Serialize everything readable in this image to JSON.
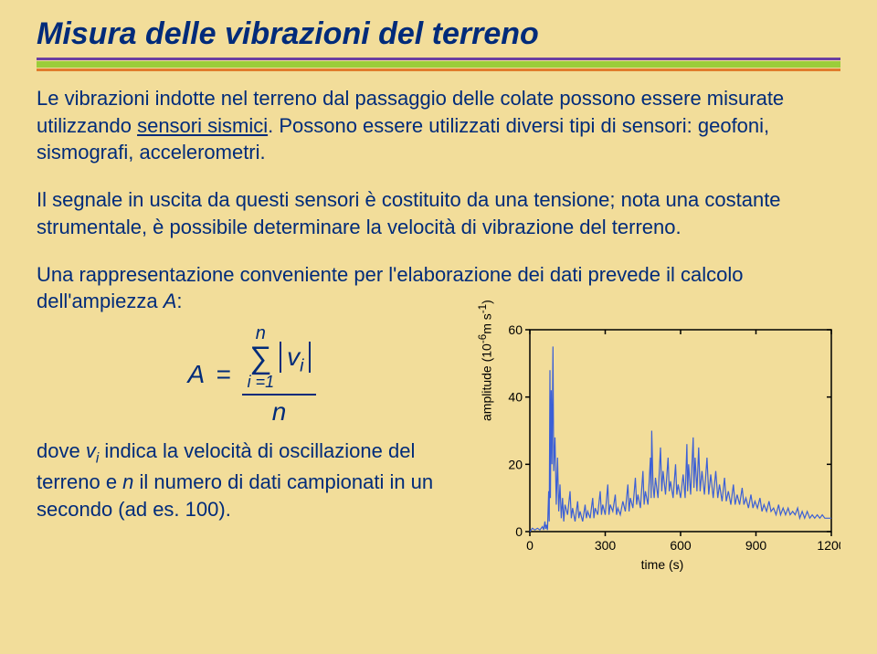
{
  "title": "Misura delle vibrazioni del terreno",
  "p1_a": "Le vibrazioni indotte nel terreno dal passaggio delle colate possono essere misurate utilizzando ",
  "p1_u": "sensori sismici",
  "p1_b": ". Possono essere utilizzati diversi tipi di sensori: geofoni, sismografi, accelerometri.",
  "p2": "Il segnale in uscita da questi sensori è costituito da una tensione; nota una costante strumentale, è possibile determinare la velocità di vibrazione del terreno.",
  "p3": "Una rappresentazione conveniente per l'elaborazione dei dati prevede il calcolo dell'ampiezza ",
  "p3_A": "A",
  "p3_colon": ":",
  "formula": {
    "A": "A",
    "eq": "=",
    "n_top": "n",
    "sigma": "∑",
    "i1": "i =1",
    "v": "v",
    "i": "i",
    "n_bot": "n"
  },
  "caption_a": "dove ",
  "caption_v": "v",
  "caption_i": "i",
  "caption_b": " indica la velocità di oscillazione del terreno e ",
  "caption_n": "n",
  "caption_c": " il numero di dati campionati in un secondo (ad es. 100).",
  "chart": {
    "ylabel_a": "amplitude (10",
    "ylabel_sup": "-6",
    "ylabel_b": "m s",
    "ylabel_sup2": "-1",
    "ylabel_c": ")",
    "xlabel": "time (s)",
    "yticks": [
      "0",
      "20",
      "40",
      "60"
    ],
    "xticks": [
      "0",
      "300",
      "600",
      "900",
      "1200"
    ],
    "xlim": [
      0,
      1200
    ],
    "ylim": [
      0,
      60
    ],
    "line_color": "#3b5fd6",
    "axis_color": "#000000",
    "background": "#f2dd9a",
    "data": [
      [
        0,
        0
      ],
      [
        10,
        1
      ],
      [
        20,
        0.5
      ],
      [
        30,
        1
      ],
      [
        40,
        0.5
      ],
      [
        50,
        1.5
      ],
      [
        55,
        0.5
      ],
      [
        60,
        3
      ],
      [
        63,
        0.8
      ],
      [
        66,
        2
      ],
      [
        70,
        0.5
      ],
      [
        75,
        12
      ],
      [
        77,
        3
      ],
      [
        80,
        48
      ],
      [
        82,
        10
      ],
      [
        85,
        42
      ],
      [
        88,
        20
      ],
      [
        92,
        55
      ],
      [
        95,
        18
      ],
      [
        100,
        28
      ],
      [
        105,
        8
      ],
      [
        110,
        22
      ],
      [
        115,
        6
      ],
      [
        120,
        14
      ],
      [
        125,
        4
      ],
      [
        130,
        10
      ],
      [
        135,
        3
      ],
      [
        140,
        8
      ],
      [
        150,
        5
      ],
      [
        160,
        12
      ],
      [
        165,
        4
      ],
      [
        170,
        7
      ],
      [
        180,
        3
      ],
      [
        190,
        9
      ],
      [
        195,
        4
      ],
      [
        200,
        6
      ],
      [
        210,
        3
      ],
      [
        220,
        8
      ],
      [
        225,
        4
      ],
      [
        230,
        6
      ],
      [
        240,
        4
      ],
      [
        250,
        10
      ],
      [
        255,
        4
      ],
      [
        260,
        7
      ],
      [
        270,
        5
      ],
      [
        280,
        12
      ],
      [
        285,
        5
      ],
      [
        290,
        8
      ],
      [
        300,
        5
      ],
      [
        310,
        14
      ],
      [
        315,
        5
      ],
      [
        320,
        8
      ],
      [
        330,
        6
      ],
      [
        340,
        11
      ],
      [
        345,
        5
      ],
      [
        350,
        7
      ],
      [
        360,
        5
      ],
      [
        370,
        9
      ],
      [
        380,
        6
      ],
      [
        390,
        14
      ],
      [
        395,
        6
      ],
      [
        400,
        10
      ],
      [
        410,
        7
      ],
      [
        420,
        16
      ],
      [
        425,
        8
      ],
      [
        430,
        11
      ],
      [
        440,
        7
      ],
      [
        450,
        18
      ],
      [
        455,
        8
      ],
      [
        460,
        12
      ],
      [
        470,
        8
      ],
      [
        480,
        22
      ],
      [
        483,
        10
      ],
      [
        485,
        30
      ],
      [
        490,
        14
      ],
      [
        495,
        10
      ],
      [
        500,
        16
      ],
      [
        510,
        10
      ],
      [
        520,
        25
      ],
      [
        525,
        12
      ],
      [
        530,
        18
      ],
      [
        540,
        11
      ],
      [
        550,
        22
      ],
      [
        555,
        12
      ],
      [
        560,
        15
      ],
      [
        570,
        10
      ],
      [
        580,
        20
      ],
      [
        585,
        11
      ],
      [
        590,
        14
      ],
      [
        600,
        10
      ],
      [
        610,
        17
      ],
      [
        618,
        10
      ],
      [
        625,
        26
      ],
      [
        628,
        12
      ],
      [
        632,
        20
      ],
      [
        640,
        11
      ],
      [
        650,
        28
      ],
      [
        653,
        13
      ],
      [
        658,
        22
      ],
      [
        665,
        12
      ],
      [
        672,
        25
      ],
      [
        678,
        12
      ],
      [
        685,
        18
      ],
      [
        695,
        11
      ],
      [
        705,
        22
      ],
      [
        712,
        11
      ],
      [
        720,
        17
      ],
      [
        730,
        10
      ],
      [
        740,
        18
      ],
      [
        748,
        10
      ],
      [
        755,
        14
      ],
      [
        765,
        9
      ],
      [
        775,
        16
      ],
      [
        782,
        9
      ],
      [
        790,
        12
      ],
      [
        800,
        8
      ],
      [
        810,
        14
      ],
      [
        817,
        8
      ],
      [
        825,
        11
      ],
      [
        835,
        8
      ],
      [
        845,
        13
      ],
      [
        852,
        8
      ],
      [
        860,
        10
      ],
      [
        870,
        7
      ],
      [
        880,
        11
      ],
      [
        888,
        7
      ],
      [
        896,
        9
      ],
      [
        906,
        7
      ],
      [
        916,
        10
      ],
      [
        924,
        6
      ],
      [
        932,
        8
      ],
      [
        942,
        6
      ],
      [
        952,
        9
      ],
      [
        960,
        6
      ],
      [
        970,
        7
      ],
      [
        980,
        5
      ],
      [
        990,
        8
      ],
      [
        998,
        5
      ],
      [
        1008,
        7
      ],
      [
        1018,
        5
      ],
      [
        1028,
        7
      ],
      [
        1036,
        5
      ],
      [
        1046,
        6
      ],
      [
        1056,
        5
      ],
      [
        1066,
        7
      ],
      [
        1074,
        4
      ],
      [
        1084,
        6
      ],
      [
        1094,
        4
      ],
      [
        1104,
        6
      ],
      [
        1114,
        4
      ],
      [
        1124,
        5
      ],
      [
        1134,
        4
      ],
      [
        1144,
        5
      ],
      [
        1154,
        4
      ],
      [
        1164,
        5
      ],
      [
        1174,
        4
      ],
      [
        1184,
        4
      ],
      [
        1194,
        4
      ],
      [
        1200,
        4
      ]
    ]
  }
}
